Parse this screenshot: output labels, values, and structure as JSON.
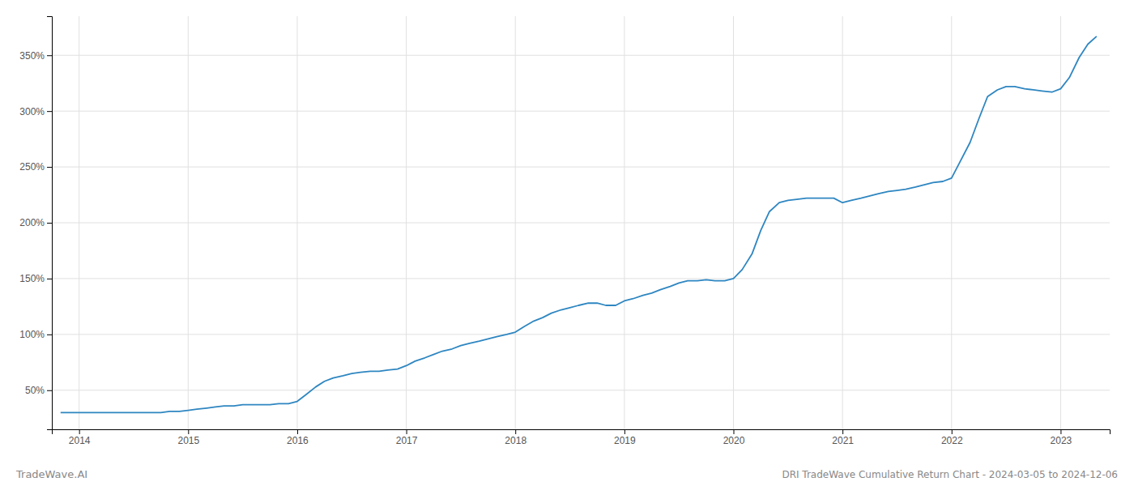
{
  "chart_data": {
    "type": "line",
    "title": "DRI TradeWave Cumulative Return Chart - 2024-03-05 to 2024-12-06",
    "annotations": [
      "TradeWave.AI"
    ],
    "color": "#2e86c1",
    "grid": true,
    "xlim": [
      2013.75,
      2023.45
    ],
    "ylim": [
      15,
      385
    ],
    "xticks": [
      2014,
      2015,
      2016,
      2017,
      2018,
      2019,
      2020,
      2021,
      2022,
      2023
    ],
    "yticks": [
      {
        "value": 50,
        "label": "50%"
      },
      {
        "value": 100,
        "label": "100%"
      },
      {
        "value": 150,
        "label": "150%"
      },
      {
        "value": 200,
        "label": "200%"
      },
      {
        "value": 250,
        "label": "250%"
      },
      {
        "value": 300,
        "label": "300%"
      },
      {
        "value": 350,
        "label": "350%"
      }
    ],
    "x": [
      2013.83,
      2013.92,
      2014.0,
      2014.08,
      2014.17,
      2014.25,
      2014.33,
      2014.42,
      2014.5,
      2014.58,
      2014.67,
      2014.75,
      2014.83,
      2014.92,
      2015.0,
      2015.08,
      2015.17,
      2015.25,
      2015.33,
      2015.42,
      2015.5,
      2015.58,
      2015.67,
      2015.75,
      2015.83,
      2015.92,
      2016.0,
      2016.08,
      2016.17,
      2016.25,
      2016.33,
      2016.42,
      2016.5,
      2016.58,
      2016.67,
      2016.75,
      2016.83,
      2016.92,
      2017.0,
      2017.08,
      2017.17,
      2017.25,
      2017.33,
      2017.42,
      2017.5,
      2017.58,
      2017.67,
      2017.75,
      2017.83,
      2017.92,
      2018.0,
      2018.08,
      2018.17,
      2018.25,
      2018.33,
      2018.42,
      2018.5,
      2018.58,
      2018.67,
      2018.75,
      2018.83,
      2018.92,
      2019.0,
      2019.08,
      2019.17,
      2019.25,
      2019.33,
      2019.42,
      2019.5,
      2019.58,
      2019.67,
      2019.75,
      2019.83,
      2019.92,
      2020.0,
      2020.08,
      2020.17,
      2020.25,
      2020.33,
      2020.42,
      2020.5,
      2020.58,
      2020.67,
      2020.75,
      2020.83,
      2020.92,
      2021.0,
      2021.08,
      2021.17,
      2021.25,
      2021.33,
      2021.42,
      2021.5,
      2021.58,
      2021.67,
      2021.75,
      2021.83,
      2021.92,
      2022.0,
      2022.08,
      2022.17,
      2022.25,
      2022.33,
      2022.42,
      2022.5,
      2022.58,
      2022.67,
      2022.75,
      2022.83,
      2022.92,
      2023.0,
      2023.08,
      2023.17,
      2023.25,
      2023.33
    ],
    "values": [
      30,
      30,
      30,
      30,
      30,
      30,
      30,
      30,
      30,
      30,
      30,
      30,
      31,
      31,
      32,
      33,
      34,
      35,
      36,
      36,
      37,
      37,
      37,
      37,
      38,
      38,
      40,
      46,
      53,
      58,
      61,
      63,
      65,
      66,
      67,
      67,
      68,
      69,
      72,
      76,
      79,
      82,
      85,
      87,
      90,
      92,
      94,
      96,
      98,
      100,
      102,
      107,
      112,
      115,
      119,
      122,
      124,
      126,
      128,
      128,
      126,
      126,
      130,
      132,
      135,
      137,
      140,
      143,
      146,
      148,
      148,
      149,
      148,
      148,
      150,
      158,
      172,
      193,
      210,
      218,
      220,
      221,
      222,
      222,
      222,
      222,
      218,
      220,
      222,
      224,
      226,
      228,
      229,
      230,
      232,
      234,
      236,
      237,
      240,
      255,
      272,
      293,
      313,
      319,
      322,
      322,
      320,
      319,
      318,
      317,
      320,
      330,
      348,
      360,
      367
    ]
  }
}
